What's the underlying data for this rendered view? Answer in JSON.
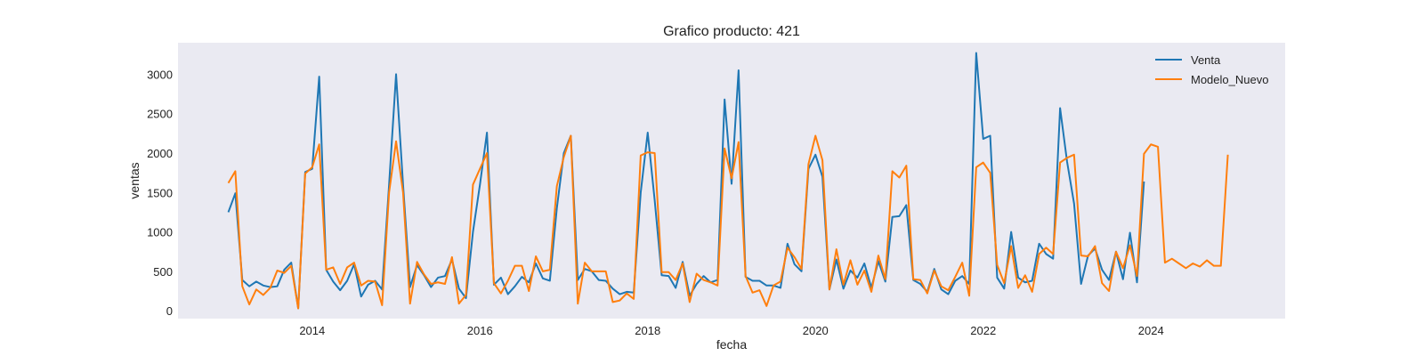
{
  "chart_data": {
    "type": "line",
    "title": "Grafico producto: 421",
    "xlabel": "fecha",
    "ylabel": "ventas",
    "xlim": [
      2012.4,
      2025.6
    ],
    "ylim": [
      -100,
      3400
    ],
    "x_ticks": [
      2014,
      2016,
      2018,
      2020,
      2022,
      2024
    ],
    "x_tick_labels": [
      "2014",
      "2016",
      "2018",
      "2020",
      "2022",
      "2024"
    ],
    "y_ticks": [
      0,
      500,
      1000,
      1500,
      2000,
      2500,
      3000
    ],
    "y_tick_labels": [
      "0",
      "500",
      "1000",
      "1500",
      "2000",
      "2500",
      "3000"
    ],
    "grid": false,
    "legend_position": "top-right",
    "x_start": "2013-01",
    "series": [
      {
        "name": "Venta",
        "color": "#1f77b4",
        "values": [
          1250,
          1490,
          390,
          310,
          370,
          320,
          300,
          310,
          520,
          610,
          30,
          1760,
          1800,
          2970,
          520,
          370,
          260,
          380,
          590,
          180,
          330,
          380,
          270,
          1600,
          3000,
          1600,
          300,
          580,
          450,
          300,
          420,
          440,
          650,
          280,
          160,
          1000,
          1600,
          2260,
          330,
          420,
          210,
          310,
          430,
          360,
          600,
          410,
          380,
          1300,
          2000,
          2220,
          390,
          530,
          500,
          390,
          380,
          280,
          210,
          240,
          230,
          1500,
          2260,
          1400,
          450,
          440,
          290,
          620,
          190,
          340,
          440,
          360,
          390,
          2680,
          1610,
          3050,
          430,
          380,
          380,
          320,
          320,
          290,
          850,
          590,
          500,
          1800,
          1980,
          1700,
          270,
          650,
          280,
          510,
          420,
          600,
          290,
          630,
          370,
          1190,
          1200,
          1340,
          390,
          340,
          240,
          530,
          270,
          210,
          380,
          440,
          340,
          3270,
          2180,
          2220,
          420,
          280,
          1000,
          420,
          360,
          380,
          850,
          720,
          660,
          2570,
          1890,
          1360,
          340,
          700,
          790,
          520,
          390,
          750,
          400,
          990,
          360,
          1640
        ]
      },
      {
        "name": "Modelo_Nuevo",
        "color": "#ff7f0e",
        "values": [
          1620,
          1770,
          310,
          80,
          270,
          200,
          290,
          510,
          480,
          570,
          30,
          1740,
          1820,
          2110,
          520,
          550,
          340,
          550,
          610,
          320,
          380,
          370,
          70,
          1500,
          2150,
          1500,
          90,
          620,
          460,
          340,
          360,
          340,
          680,
          90,
          200,
          1600,
          1800,
          2000,
          350,
          220,
          380,
          570,
          570,
          250,
          690,
          500,
          520,
          1580,
          1950,
          2220,
          90,
          610,
          500,
          500,
          500,
          110,
          130,
          220,
          150,
          1970,
          2010,
          2000,
          490,
          490,
          390,
          600,
          110,
          470,
          390,
          360,
          320,
          2060,
          1680,
          2140,
          440,
          230,
          260,
          60,
          320,
          370,
          800,
          680,
          530,
          1860,
          2220,
          1910,
          270,
          780,
          330,
          640,
          330,
          510,
          240,
          700,
          400,
          1770,
          1690,
          1840,
          400,
          390,
          220,
          510,
          310,
          260,
          430,
          610,
          190,
          1820,
          1880,
          1750,
          580,
          350,
          820,
          290,
          450,
          240,
          720,
          800,
          720,
          1880,
          1940,
          1980,
          700,
          690,
          820,
          350,
          250,
          750,
          540,
          830,
          440,
          1990,
          2110,
          2080,
          610,
          660,
          600,
          540,
          600,
          560,
          640,
          570,
          570,
          1980
        ]
      }
    ]
  }
}
